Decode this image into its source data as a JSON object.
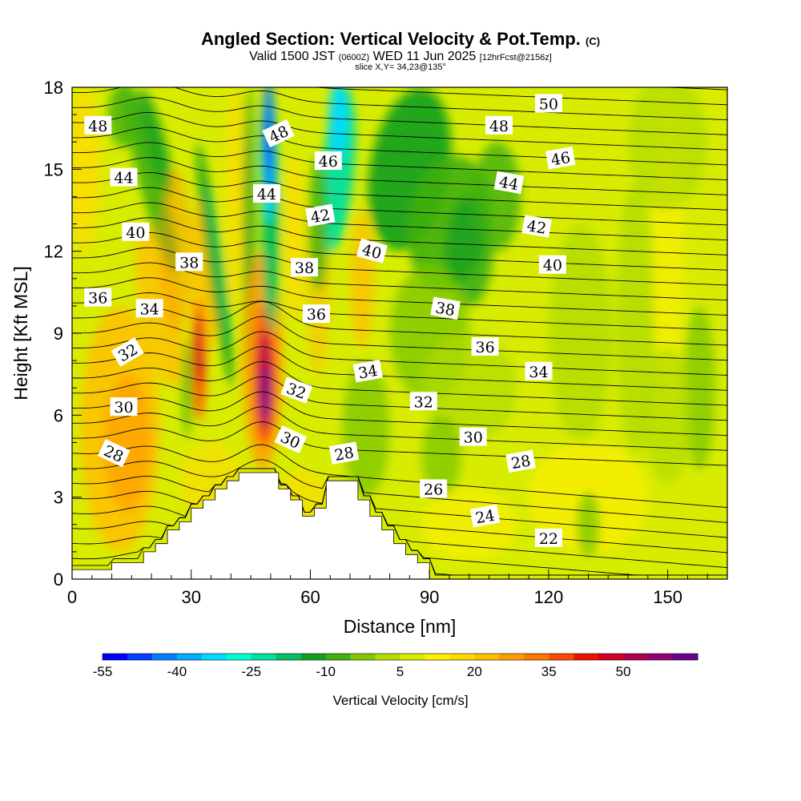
{
  "header": {
    "title": "Angled Section: Vertical Velocity & Pot.Temp.",
    "title_mark": "(C)",
    "subtitle_a": "Valid 1500 JST",
    "subtitle_b": "(0600Z)",
    "subtitle_c": "WED 11 Jun 2025",
    "subtitle_d": "[12hrFcst@2156z]",
    "slice": "slice X,Y= 34,23@135°"
  },
  "chart_data": {
    "type": "heatmap",
    "xlabel": "Distance [nm]",
    "ylabel": "Height [Kft MSL]",
    "xlim": [
      0,
      165
    ],
    "ylim": [
      0,
      18
    ],
    "x_ticks": [
      "0",
      "30",
      "60",
      "90",
      "120",
      "150"
    ],
    "y_ticks": [
      "0",
      "3",
      "6",
      "9",
      "12",
      "15",
      "18"
    ],
    "background_color": "#d8ec00",
    "terrain": [
      [
        0,
        0.35
      ],
      [
        10,
        0.35
      ],
      [
        10,
        0.6
      ],
      [
        18,
        0.6
      ],
      [
        18,
        1
      ],
      [
        21,
        1
      ],
      [
        21,
        1.3
      ],
      [
        24,
        1.3
      ],
      [
        24,
        1.8
      ],
      [
        27,
        1.8
      ],
      [
        27,
        2.1
      ],
      [
        30,
        2.1
      ],
      [
        30,
        2.6
      ],
      [
        33,
        2.6
      ],
      [
        33,
        2.9
      ],
      [
        36,
        2.9
      ],
      [
        36,
        3.3
      ],
      [
        39,
        3.3
      ],
      [
        39,
        3.6
      ],
      [
        42,
        3.6
      ],
      [
        42,
        3.9
      ],
      [
        52,
        3.9
      ],
      [
        52,
        3.3
      ],
      [
        55,
        3.3
      ],
      [
        55,
        2.9
      ],
      [
        58,
        2.9
      ],
      [
        58,
        2.3
      ],
      [
        61,
        2.3
      ],
      [
        61,
        2.6
      ],
      [
        64,
        2.6
      ],
      [
        64,
        3.6
      ],
      [
        72,
        3.6
      ],
      [
        72,
        2.9
      ],
      [
        75,
        2.9
      ],
      [
        75,
        2.3
      ],
      [
        78,
        2.3
      ],
      [
        78,
        1.8
      ],
      [
        81,
        1.8
      ],
      [
        81,
        1.3
      ],
      [
        84,
        1.3
      ],
      [
        84,
        0.9
      ],
      [
        87,
        0.9
      ],
      [
        87,
        0.6
      ],
      [
        90,
        0.6
      ],
      [
        90,
        0
      ]
    ],
    "contour_labels": [
      {
        "text": "48",
        "x": 6.5,
        "y": 16.6,
        "angle": 0
      },
      {
        "text": "44",
        "x": 13,
        "y": 14.7,
        "angle": 0
      },
      {
        "text": "40",
        "x": 16,
        "y": 12.7,
        "angle": 0
      },
      {
        "text": "36",
        "x": 6.5,
        "y": 10.3,
        "angle": 0
      },
      {
        "text": "34",
        "x": 19.5,
        "y": 9.9,
        "angle": 0
      },
      {
        "text": "32",
        "x": 14,
        "y": 8.3,
        "angle": -30
      },
      {
        "text": "30",
        "x": 13,
        "y": 6.3,
        "angle": 0
      },
      {
        "text": "28",
        "x": 10.5,
        "y": 4.6,
        "angle": 25
      },
      {
        "text": "38",
        "x": 29.5,
        "y": 11.6,
        "angle": 0
      },
      {
        "text": "48",
        "x": 52,
        "y": 16.3,
        "angle": -25
      },
      {
        "text": "44",
        "x": 49,
        "y": 14.1,
        "angle": 0
      },
      {
        "text": "46",
        "x": 64.5,
        "y": 15.3,
        "angle": 0
      },
      {
        "text": "42",
        "x": 62.5,
        "y": 13.3,
        "angle": -10
      },
      {
        "text": "38",
        "x": 58.5,
        "y": 11.4,
        "angle": 0
      },
      {
        "text": "36",
        "x": 61.5,
        "y": 9.7,
        "angle": 0
      },
      {
        "text": "32",
        "x": 56.5,
        "y": 6.9,
        "angle": 20
      },
      {
        "text": "30",
        "x": 55,
        "y": 5.1,
        "angle": 25
      },
      {
        "text": "28",
        "x": 68.5,
        "y": 4.6,
        "angle": -10
      },
      {
        "text": "40",
        "x": 75.5,
        "y": 12,
        "angle": 15
      },
      {
        "text": "34",
        "x": 74.5,
        "y": 7.6,
        "angle": -10
      },
      {
        "text": "32",
        "x": 88.5,
        "y": 6.5,
        "angle": 0
      },
      {
        "text": "38",
        "x": 94,
        "y": 9.9,
        "angle": 10
      },
      {
        "text": "36",
        "x": 104,
        "y": 8.5,
        "angle": 0
      },
      {
        "text": "34",
        "x": 117.5,
        "y": 7.6,
        "angle": 0
      },
      {
        "text": "30",
        "x": 101,
        "y": 5.2,
        "angle": 0
      },
      {
        "text": "28",
        "x": 113,
        "y": 4.3,
        "angle": -10
      },
      {
        "text": "26",
        "x": 91,
        "y": 3.3,
        "angle": 0
      },
      {
        "text": "24",
        "x": 104,
        "y": 2.3,
        "angle": -10
      },
      {
        "text": "22",
        "x": 120,
        "y": 1.5,
        "angle": 0
      },
      {
        "text": "50",
        "x": 120,
        "y": 17.4,
        "angle": 0
      },
      {
        "text": "48",
        "x": 107.5,
        "y": 16.6,
        "angle": 0
      },
      {
        "text": "46",
        "x": 123,
        "y": 15.4,
        "angle": -10
      },
      {
        "text": "44",
        "x": 110,
        "y": 14.5,
        "angle": 10
      },
      {
        "text": "42",
        "x": 117,
        "y": 12.9,
        "angle": 10
      },
      {
        "text": "40",
        "x": 121,
        "y": 11.5,
        "angle": 0
      }
    ],
    "colorbar": {
      "label": "Vertical Velocity [cm/s]",
      "tick_labels": [
        "-55",
        "-40",
        "-25",
        "-10",
        "5",
        "20",
        "35",
        "50"
      ],
      "colors": [
        "#0000ff",
        "#0040ff",
        "#0080ff",
        "#00b0ff",
        "#00dcff",
        "#00ffd0",
        "#00e0a0",
        "#00c060",
        "#10a020",
        "#40b010",
        "#80c800",
        "#b0dc00",
        "#d8ec00",
        "#fff000",
        "#ffdc00",
        "#ffc000",
        "#ff9c00",
        "#ff7800",
        "#ff4800",
        "#f01000",
        "#d00020",
        "#b00050",
        "#900070",
        "#6a0090"
      ]
    }
  }
}
